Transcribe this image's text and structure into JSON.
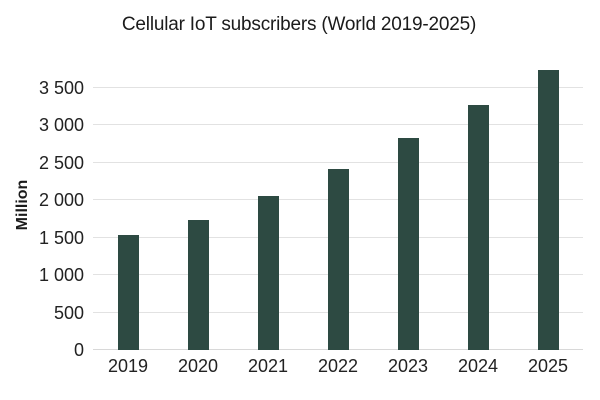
{
  "chart_data": {
    "type": "bar",
    "title": "Cellular IoT subscribers (World 2019-2025)",
    "ylabel": "Million",
    "xlabel": "",
    "categories": [
      "2019",
      "2020",
      "2021",
      "2022",
      "2023",
      "2024",
      "2025"
    ],
    "values": [
      1540,
      1730,
      2050,
      2410,
      2830,
      3270,
      3740
    ],
    "y_ticks": [
      {
        "value": 0,
        "label": "0"
      },
      {
        "value": 500,
        "label": "500"
      },
      {
        "value": 1000,
        "label": "1 000"
      },
      {
        "value": 1500,
        "label": "1 500"
      },
      {
        "value": 2000,
        "label": "2 000"
      },
      {
        "value": 2500,
        "label": "2 500"
      },
      {
        "value": 3000,
        "label": "3 000"
      },
      {
        "value": 3500,
        "label": "3 500"
      }
    ],
    "ylim": [
      0,
      3750
    ],
    "grid": true,
    "legend": false,
    "bar_color": "#2d4a42",
    "gridline_color": "#e2e2e2",
    "axis_line_color": "#d8d8d8",
    "background_color": "#ffffff",
    "text_color": "#1b1b1b"
  }
}
